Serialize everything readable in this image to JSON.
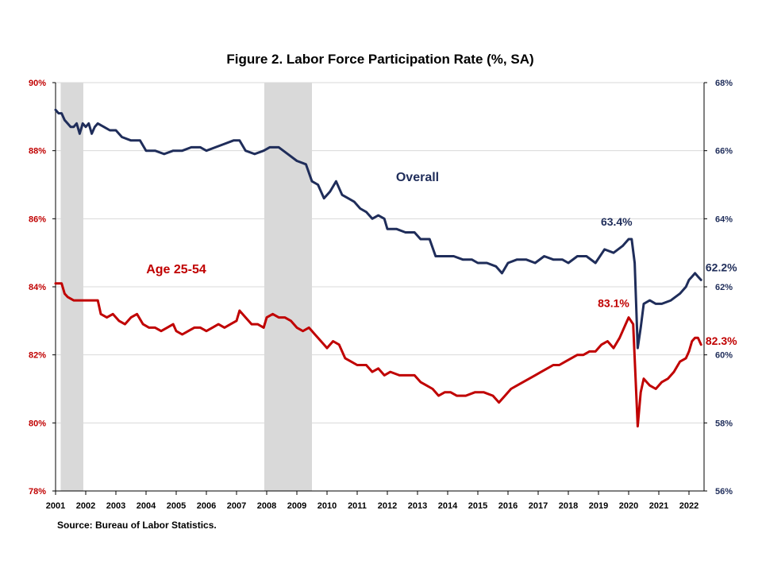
{
  "chart_data": {
    "type": "line",
    "title": "Figure 2. Labor Force Participation  Rate (%, SA)",
    "source": "Source: Bureau of Labor Statistics.",
    "x_range": [
      2001.0,
      2022.5
    ],
    "x_ticks": [
      "2001",
      "2002",
      "2003",
      "2004",
      "2005",
      "2006",
      "2007",
      "2008",
      "2009",
      "2010",
      "2011",
      "2012",
      "2013",
      "2014",
      "2015",
      "2016",
      "2017",
      "2018",
      "2019",
      "2020",
      "2021",
      "2022"
    ],
    "y_left": {
      "range": [
        78,
        90
      ],
      "ticks": [
        "78%",
        "80%",
        "82%",
        "84%",
        "86%",
        "88%",
        "90%"
      ],
      "color": "#c00000"
    },
    "y_right": {
      "range": [
        56,
        68
      ],
      "ticks": [
        "56%",
        "58%",
        "60%",
        "62%",
        "64%",
        "66%",
        "68%"
      ],
      "color": "#1f2d5a"
    },
    "grid": true,
    "recessions": [
      [
        2001.17,
        2001.92
      ],
      [
        2007.92,
        2009.5
      ]
    ],
    "recession_color": "#d9d9d9",
    "series": [
      {
        "name": "Overall",
        "axis": "right",
        "color": "#1f2d5a",
        "points": [
          [
            2001.0,
            67.2
          ],
          [
            2001.1,
            67.1
          ],
          [
            2001.2,
            67.1
          ],
          [
            2001.3,
            66.9
          ],
          [
            2001.4,
            66.8
          ],
          [
            2001.5,
            66.7
          ],
          [
            2001.6,
            66.7
          ],
          [
            2001.7,
            66.8
          ],
          [
            2001.8,
            66.5
          ],
          [
            2001.9,
            66.8
          ],
          [
            2002.0,
            66.7
          ],
          [
            2002.1,
            66.8
          ],
          [
            2002.2,
            66.5
          ],
          [
            2002.3,
            66.7
          ],
          [
            2002.4,
            66.8
          ],
          [
            2002.6,
            66.7
          ],
          [
            2002.8,
            66.6
          ],
          [
            2003.0,
            66.6
          ],
          [
            2003.2,
            66.4
          ],
          [
            2003.5,
            66.3
          ],
          [
            2003.8,
            66.3
          ],
          [
            2004.0,
            66.0
          ],
          [
            2004.3,
            66.0
          ],
          [
            2004.6,
            65.9
          ],
          [
            2004.9,
            66.0
          ],
          [
            2005.2,
            66.0
          ],
          [
            2005.5,
            66.1
          ],
          [
            2005.8,
            66.1
          ],
          [
            2006.0,
            66.0
          ],
          [
            2006.3,
            66.1
          ],
          [
            2006.6,
            66.2
          ],
          [
            2006.9,
            66.3
          ],
          [
            2007.1,
            66.3
          ],
          [
            2007.3,
            66.0
          ],
          [
            2007.6,
            65.9
          ],
          [
            2007.9,
            66.0
          ],
          [
            2008.1,
            66.1
          ],
          [
            2008.4,
            66.1
          ],
          [
            2008.7,
            65.9
          ],
          [
            2009.0,
            65.7
          ],
          [
            2009.3,
            65.6
          ],
          [
            2009.5,
            65.1
          ],
          [
            2009.7,
            65.0
          ],
          [
            2009.9,
            64.6
          ],
          [
            2010.1,
            64.8
          ],
          [
            2010.3,
            65.1
          ],
          [
            2010.5,
            64.7
          ],
          [
            2010.7,
            64.6
          ],
          [
            2010.9,
            64.5
          ],
          [
            2011.1,
            64.3
          ],
          [
            2011.3,
            64.2
          ],
          [
            2011.5,
            64.0
          ],
          [
            2011.7,
            64.1
          ],
          [
            2011.9,
            64.0
          ],
          [
            2012.0,
            63.7
          ],
          [
            2012.3,
            63.7
          ],
          [
            2012.6,
            63.6
          ],
          [
            2012.9,
            63.6
          ],
          [
            2013.1,
            63.4
          ],
          [
            2013.4,
            63.4
          ],
          [
            2013.6,
            62.9
          ],
          [
            2013.9,
            62.9
          ],
          [
            2014.2,
            62.9
          ],
          [
            2014.5,
            62.8
          ],
          [
            2014.8,
            62.8
          ],
          [
            2015.0,
            62.7
          ],
          [
            2015.3,
            62.7
          ],
          [
            2015.6,
            62.6
          ],
          [
            2015.8,
            62.4
          ],
          [
            2016.0,
            62.7
          ],
          [
            2016.3,
            62.8
          ],
          [
            2016.6,
            62.8
          ],
          [
            2016.9,
            62.7
          ],
          [
            2017.2,
            62.9
          ],
          [
            2017.5,
            62.8
          ],
          [
            2017.8,
            62.8
          ],
          [
            2018.0,
            62.7
          ],
          [
            2018.3,
            62.9
          ],
          [
            2018.6,
            62.9
          ],
          [
            2018.9,
            62.7
          ],
          [
            2019.2,
            63.1
          ],
          [
            2019.5,
            63.0
          ],
          [
            2019.8,
            63.2
          ],
          [
            2020.0,
            63.4
          ],
          [
            2020.1,
            63.4
          ],
          [
            2020.2,
            62.7
          ],
          [
            2020.3,
            60.2
          ],
          [
            2020.4,
            60.8
          ],
          [
            2020.5,
            61.5
          ],
          [
            2020.7,
            61.6
          ],
          [
            2020.9,
            61.5
          ],
          [
            2021.1,
            61.5
          ],
          [
            2021.4,
            61.6
          ],
          [
            2021.7,
            61.8
          ],
          [
            2021.9,
            62.0
          ],
          [
            2022.0,
            62.2
          ],
          [
            2022.1,
            62.3
          ],
          [
            2022.2,
            62.4
          ],
          [
            2022.3,
            62.3
          ],
          [
            2022.4,
            62.2
          ]
        ]
      },
      {
        "name": "Age 25-54",
        "axis": "left",
        "color": "#c00000",
        "points": [
          [
            2001.0,
            84.1
          ],
          [
            2001.1,
            84.1
          ],
          [
            2001.2,
            84.1
          ],
          [
            2001.3,
            83.8
          ],
          [
            2001.4,
            83.7
          ],
          [
            2001.6,
            83.6
          ],
          [
            2001.8,
            83.6
          ],
          [
            2002.0,
            83.6
          ],
          [
            2002.2,
            83.6
          ],
          [
            2002.4,
            83.6
          ],
          [
            2002.5,
            83.2
          ],
          [
            2002.7,
            83.1
          ],
          [
            2002.9,
            83.2
          ],
          [
            2003.1,
            83.0
          ],
          [
            2003.3,
            82.9
          ],
          [
            2003.5,
            83.1
          ],
          [
            2003.7,
            83.2
          ],
          [
            2003.9,
            82.9
          ],
          [
            2004.1,
            82.8
          ],
          [
            2004.3,
            82.8
          ],
          [
            2004.5,
            82.7
          ],
          [
            2004.7,
            82.8
          ],
          [
            2004.9,
            82.9
          ],
          [
            2005.0,
            82.7
          ],
          [
            2005.2,
            82.6
          ],
          [
            2005.4,
            82.7
          ],
          [
            2005.6,
            82.8
          ],
          [
            2005.8,
            82.8
          ],
          [
            2006.0,
            82.7
          ],
          [
            2006.2,
            82.8
          ],
          [
            2006.4,
            82.9
          ],
          [
            2006.6,
            82.8
          ],
          [
            2006.8,
            82.9
          ],
          [
            2007.0,
            83.0
          ],
          [
            2007.1,
            83.3
          ],
          [
            2007.3,
            83.1
          ],
          [
            2007.5,
            82.9
          ],
          [
            2007.7,
            82.9
          ],
          [
            2007.9,
            82.8
          ],
          [
            2008.0,
            83.1
          ],
          [
            2008.2,
            83.2
          ],
          [
            2008.4,
            83.1
          ],
          [
            2008.6,
            83.1
          ],
          [
            2008.8,
            83.0
          ],
          [
            2009.0,
            82.8
          ],
          [
            2009.2,
            82.7
          ],
          [
            2009.4,
            82.8
          ],
          [
            2009.6,
            82.6
          ],
          [
            2009.8,
            82.4
          ],
          [
            2010.0,
            82.2
          ],
          [
            2010.2,
            82.4
          ],
          [
            2010.4,
            82.3
          ],
          [
            2010.6,
            81.9
          ],
          [
            2010.8,
            81.8
          ],
          [
            2011.0,
            81.7
          ],
          [
            2011.3,
            81.7
          ],
          [
            2011.5,
            81.5
          ],
          [
            2011.7,
            81.6
          ],
          [
            2011.9,
            81.4
          ],
          [
            2012.1,
            81.5
          ],
          [
            2012.4,
            81.4
          ],
          [
            2012.7,
            81.4
          ],
          [
            2012.9,
            81.4
          ],
          [
            2013.1,
            81.2
          ],
          [
            2013.3,
            81.1
          ],
          [
            2013.5,
            81.0
          ],
          [
            2013.7,
            80.8
          ],
          [
            2013.9,
            80.9
          ],
          [
            2014.1,
            80.9
          ],
          [
            2014.3,
            80.8
          ],
          [
            2014.6,
            80.8
          ],
          [
            2014.9,
            80.9
          ],
          [
            2015.2,
            80.9
          ],
          [
            2015.5,
            80.8
          ],
          [
            2015.7,
            80.6
          ],
          [
            2015.9,
            80.8
          ],
          [
            2016.1,
            81.0
          ],
          [
            2016.3,
            81.1
          ],
          [
            2016.5,
            81.2
          ],
          [
            2016.7,
            81.3
          ],
          [
            2016.9,
            81.4
          ],
          [
            2017.1,
            81.5
          ],
          [
            2017.3,
            81.6
          ],
          [
            2017.5,
            81.7
          ],
          [
            2017.7,
            81.7
          ],
          [
            2017.9,
            81.8
          ],
          [
            2018.1,
            81.9
          ],
          [
            2018.3,
            82.0
          ],
          [
            2018.5,
            82.0
          ],
          [
            2018.7,
            82.1
          ],
          [
            2018.9,
            82.1
          ],
          [
            2019.1,
            82.3
          ],
          [
            2019.3,
            82.4
          ],
          [
            2019.5,
            82.2
          ],
          [
            2019.7,
            82.5
          ],
          [
            2019.9,
            82.9
          ],
          [
            2020.0,
            83.1
          ],
          [
            2020.15,
            82.9
          ],
          [
            2020.3,
            79.9
          ],
          [
            2020.4,
            80.9
          ],
          [
            2020.5,
            81.3
          ],
          [
            2020.7,
            81.1
          ],
          [
            2020.9,
            81.0
          ],
          [
            2021.1,
            81.2
          ],
          [
            2021.3,
            81.3
          ],
          [
            2021.5,
            81.5
          ],
          [
            2021.7,
            81.8
          ],
          [
            2021.9,
            81.9
          ],
          [
            2022.0,
            82.1
          ],
          [
            2022.1,
            82.4
          ],
          [
            2022.2,
            82.5
          ],
          [
            2022.3,
            82.5
          ],
          [
            2022.4,
            82.3
          ]
        ]
      }
    ],
    "annotations": [
      {
        "text": "Overall",
        "x": 2013.0,
        "y": 65.1,
        "axis": "right",
        "color": "#1f2d5a",
        "size": "big"
      },
      {
        "text": "Age 25-54",
        "x": 2005.0,
        "y": 84.4,
        "axis": "left",
        "color": "#c00000",
        "size": "big"
      },
      {
        "text": "63.4%",
        "x": 2019.6,
        "y": 63.8,
        "axis": "right",
        "color": "#1f2d5a",
        "size": "small"
      },
      {
        "text": "83.1%",
        "x": 2019.5,
        "y": 83.4,
        "axis": "left",
        "color": "#c00000",
        "size": "small"
      },
      {
        "text": "62.2%",
        "x": 2022.55,
        "y": 62.45,
        "axis": "right",
        "color": "#1f2d5a",
        "size": "small"
      },
      {
        "text": "82.3%",
        "x": 2022.55,
        "y": 82.3,
        "axis": "left",
        "color": "#c00000",
        "size": "small"
      }
    ]
  }
}
